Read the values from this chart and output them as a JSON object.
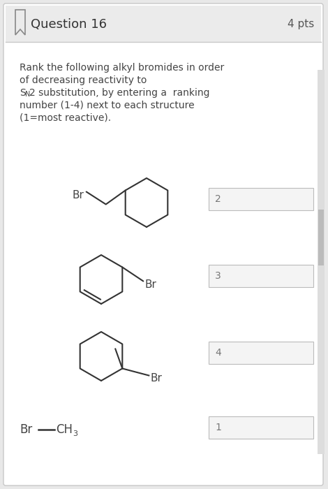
{
  "title": "Question 16",
  "pts": "4 pts",
  "bg_color": "#e8e8e8",
  "card_color": "#ffffff",
  "header_color": "#ebebeb",
  "border_color": "#c8c8c8",
  "text_color": "#444444",
  "line_color": "#333333",
  "question_text_lines": [
    "Rank the following alkyl bromides in order",
    "of decreasing reactivity to",
    "S_N2 substitution, by entering a  ranking",
    "number (1-4) next to each structure",
    "(1=most reactive)."
  ],
  "rankings": [
    "2",
    "3",
    "4",
    "1"
  ],
  "box_color": "#f4f4f4",
  "box_border": "#bbbbbb",
  "figsize": [
    4.7,
    7.0
  ],
  "dpi": 100
}
